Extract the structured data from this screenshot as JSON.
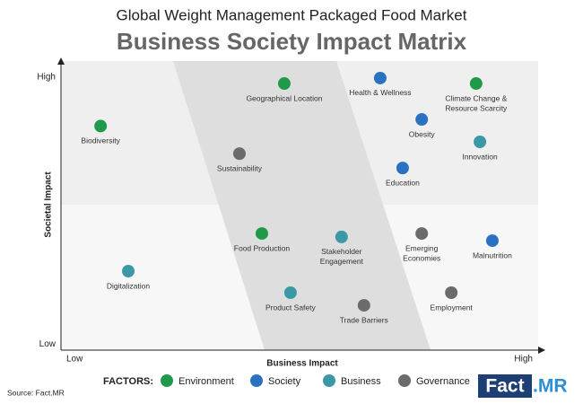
{
  "chart_data": {
    "type": "scatter",
    "title": "Global Weight Management Packaged Food Market",
    "subtitle": "Business Society Impact Matrix",
    "x_label": "Business Impact",
    "y_label": "Societal Impact",
    "xlim": [
      0,
      10
    ],
    "ylim": [
      0,
      10
    ],
    "xticks": [
      {
        "value": 0,
        "label": "Low"
      },
      {
        "value": 10,
        "label": "High"
      }
    ],
    "yticks": [
      {
        "value": 0.2,
        "label": "Low"
      },
      {
        "value": 9.5,
        "label": "High"
      }
    ],
    "legend_title": "FACTORS:",
    "source": "Source: Fact.MR",
    "logo": [
      "Fact",
      ".MR"
    ],
    "series": [
      {
        "name": "Environment",
        "color": "#1f9a4a",
        "x": [
          0.83,
          4.68,
          8.7,
          4.21
        ],
        "y": [
          7.8,
          9.28,
          9.28,
          4.06
        ],
        "labels": [
          [
            "Biodiversity"
          ],
          [
            "Geographical Location"
          ],
          [
            "Climate Change &",
            "Resource Scarcity"
          ],
          [
            "Food Production"
          ]
        ]
      },
      {
        "name": "Society",
        "color": "#2a72c0",
        "x": [
          6.69,
          7.56,
          7.16,
          9.04
        ],
        "y": [
          9.47,
          8.03,
          6.34,
          3.81
        ],
        "labels": [
          [
            "Health & Wellness"
          ],
          [
            "Obesity"
          ],
          [
            "Education"
          ],
          [
            "Malnutrition"
          ]
        ]
      },
      {
        "name": "Business",
        "color": "#3b99a6",
        "x": [
          8.78,
          5.88,
          1.41,
          4.81
        ],
        "y": [
          7.25,
          3.94,
          2.75,
          2.0
        ],
        "labels": [
          [
            "Innovation"
          ],
          [
            "Stakeholder",
            "Engagement"
          ],
          [
            "Digitalization"
          ],
          [
            "Product Safety"
          ]
        ]
      },
      {
        "name": "Governance",
        "color": "#6b6b6b",
        "x": [
          3.74,
          7.56,
          8.18,
          6.35
        ],
        "y": [
          6.84,
          4.06,
          2.0,
          1.56
        ],
        "labels": [
          [
            "Sustainability"
          ],
          [
            "Emerging",
            "Economies"
          ],
          [
            "Employment"
          ],
          [
            "Trade Barriers"
          ]
        ]
      }
    ]
  }
}
